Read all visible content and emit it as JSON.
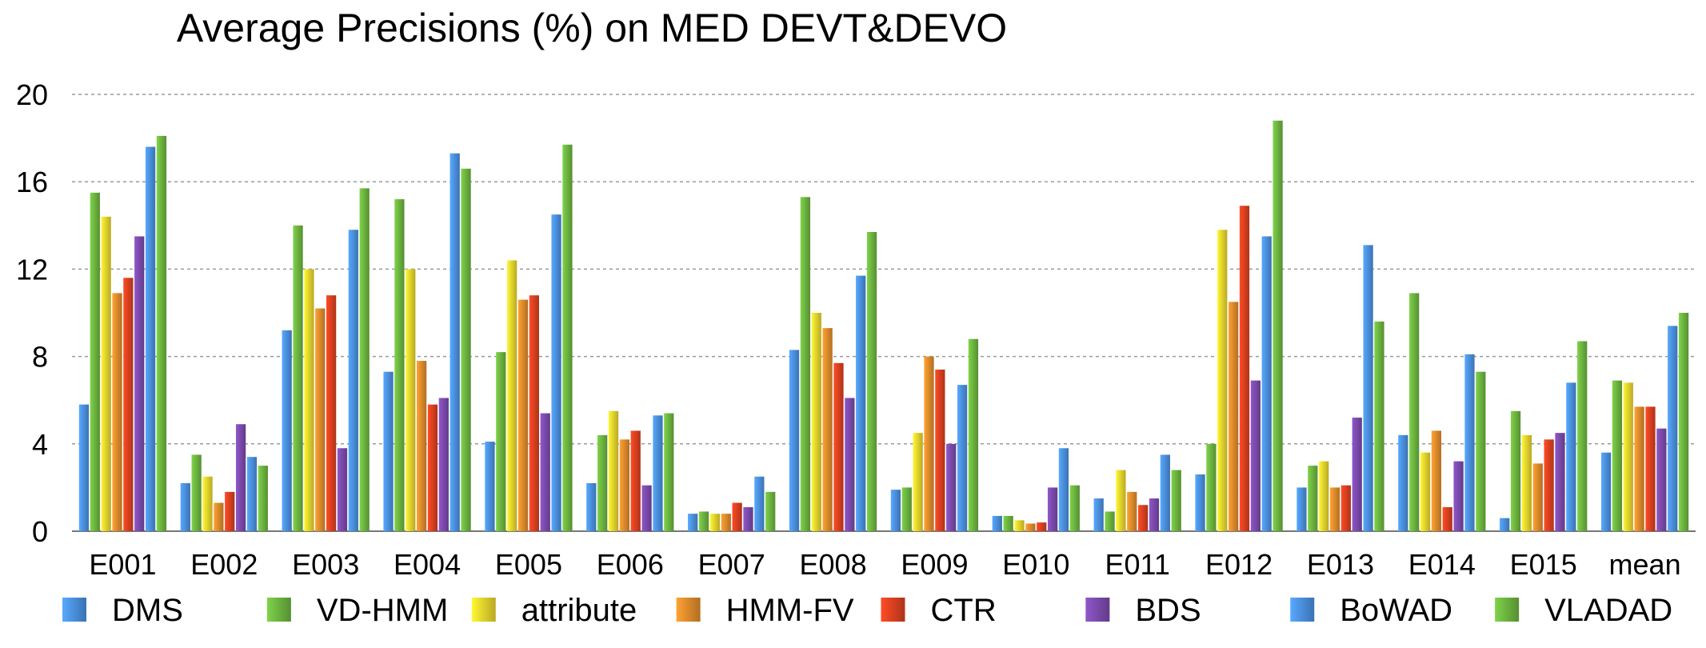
{
  "chart_data": {
    "type": "bar",
    "title": "Average Precisions (%) on MED DEVT&DEVO",
    "xlabel": "",
    "ylabel": "",
    "ylim": [
      0,
      20
    ],
    "yticks": [
      "0",
      "4",
      "8",
      "12",
      "16",
      "20"
    ],
    "grid": true,
    "legend_position": "bottom",
    "categories": [
      "E001",
      "E002",
      "E003",
      "E004",
      "E005",
      "E006",
      "E007",
      "E008",
      "E009",
      "E010",
      "E011",
      "E012",
      "E013",
      "E014",
      "E015",
      "mean"
    ],
    "series": [
      {
        "name": "DMS",
        "color": "#4a8fe0",
        "values": [
          5.8,
          2.2,
          9.2,
          7.3,
          4.1,
          2.2,
          0.8,
          8.3,
          1.9,
          0.7,
          1.5,
          2.6,
          2.0,
          4.4,
          0.6,
          3.6
        ]
      },
      {
        "name": "VD-HMM",
        "color": "#6cb33f",
        "values": [
          15.5,
          3.5,
          14.0,
          15.2,
          8.2,
          4.4,
          0.9,
          15.3,
          2.0,
          0.7,
          0.9,
          4.0,
          3.0,
          10.9,
          5.5,
          6.9
        ]
      },
      {
        "name": "attribute",
        "color": "#e8d22c",
        "values": [
          14.4,
          2.5,
          12.0,
          12.0,
          12.4,
          5.5,
          0.8,
          10.0,
          4.5,
          0.5,
          2.8,
          13.8,
          3.2,
          3.6,
          4.4,
          6.8
        ]
      },
      {
        "name": "HMM-FV",
        "color": "#de8a2a",
        "values": [
          10.9,
          1.3,
          10.2,
          7.8,
          10.6,
          4.2,
          0.8,
          9.3,
          8.0,
          0.35,
          1.8,
          10.5,
          2.0,
          4.6,
          3.1,
          5.7
        ]
      },
      {
        "name": "CTR",
        "color": "#d9401f",
        "values": [
          11.6,
          1.8,
          10.8,
          5.8,
          10.8,
          4.6,
          1.3,
          7.7,
          7.4,
          0.4,
          1.2,
          14.9,
          2.1,
          1.1,
          4.2,
          5.7
        ]
      },
      {
        "name": "BDS",
        "color": "#7a4aab",
        "values": [
          13.5,
          4.9,
          3.8,
          6.1,
          5.4,
          2.1,
          1.1,
          6.1,
          4.0,
          2.0,
          1.5,
          6.9,
          5.2,
          3.2,
          4.5,
          4.7
        ]
      },
      {
        "name": "BoWAD",
        "color": "#4a8fe0",
        "values": [
          17.6,
          3.4,
          13.8,
          17.3,
          14.5,
          5.3,
          2.5,
          11.7,
          6.7,
          3.8,
          3.5,
          13.5,
          13.1,
          8.1,
          6.8,
          9.4
        ]
      },
      {
        "name": "VLADAD",
        "color": "#6cb33f",
        "values": [
          18.1,
          3.0,
          15.7,
          16.6,
          17.7,
          5.4,
          1.8,
          13.7,
          8.8,
          2.1,
          2.8,
          18.8,
          9.6,
          7.3,
          8.7,
          10.0
        ]
      }
    ]
  }
}
